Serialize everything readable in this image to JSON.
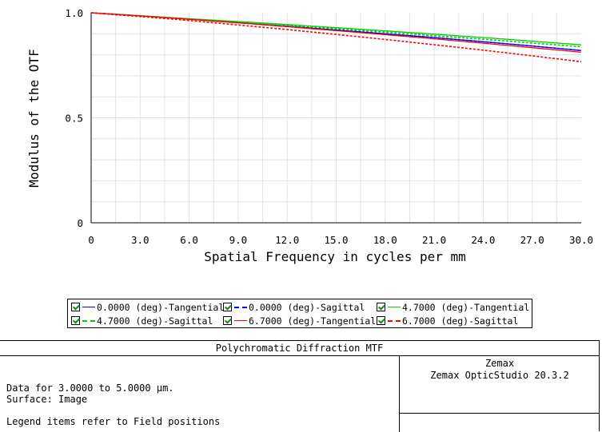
{
  "chart_data": {
    "type": "line",
    "title": "",
    "xlabel": "Spatial Frequency in cycles per mm",
    "ylabel": "Modulus of the OTF",
    "xlim": [
      0,
      30
    ],
    "ylim": [
      0,
      1
    ],
    "x_ticks": [
      "0",
      "3.0",
      "6.0",
      "9.0",
      "12.0",
      "15.0",
      "18.0",
      "21.0",
      "24.0",
      "27.0",
      "30.0"
    ],
    "y_ticks": [
      "0",
      "0.5",
      "1.0"
    ],
    "grid": true,
    "x": [
      0,
      3,
      6,
      9,
      12,
      15,
      18,
      21,
      24,
      27,
      30
    ],
    "series": [
      {
        "name": "0.0000 (deg)-Tangential",
        "color": "#0000ff",
        "style": "solid",
        "values": [
          1.0,
          0.985,
          0.97,
          0.953,
          0.936,
          0.918,
          0.9,
          0.882,
          0.862,
          0.842,
          0.82
        ]
      },
      {
        "name": "0.0000 (deg)-Sagittal",
        "color": "#0000ff",
        "style": "dashed",
        "values": [
          1.0,
          0.985,
          0.97,
          0.953,
          0.936,
          0.918,
          0.9,
          0.882,
          0.862,
          0.842,
          0.82
        ]
      },
      {
        "name": "4.7000 (deg)-Tangential",
        "color": "#00cc00",
        "style": "solid",
        "values": [
          1.0,
          0.986,
          0.972,
          0.958,
          0.944,
          0.929,
          0.914,
          0.898,
          0.882,
          0.865,
          0.847
        ]
      },
      {
        "name": "4.7000 (deg)-Sagittal",
        "color": "#00cc00",
        "style": "dashed",
        "values": [
          1.0,
          0.985,
          0.97,
          0.955,
          0.94,
          0.924,
          0.908,
          0.891,
          0.874,
          0.856,
          0.838
        ]
      },
      {
        "name": "6.7000 (deg)-Tangential",
        "color": "#ff0000",
        "style": "solid",
        "values": [
          1.0,
          0.985,
          0.969,
          0.952,
          0.934,
          0.915,
          0.896,
          0.876,
          0.855,
          0.834,
          0.812
        ]
      },
      {
        "name": "6.7000 (deg)-Sagittal",
        "color": "#ff0000",
        "style": "dashed",
        "values": [
          1.0,
          0.982,
          0.963,
          0.942,
          0.92,
          0.897,
          0.873,
          0.848,
          0.822,
          0.795,
          0.767
        ]
      }
    ],
    "legend_placement": "bottom"
  },
  "legend_note": "Legend items refer to Field positions",
  "info": {
    "title": "Polychromatic Diffraction MTF",
    "data_line": "Data for 3.0000 to 5.0000 µm.",
    "surface_line": "Surface: Image",
    "company": "Zemax",
    "product": "Zemax OpticStudio 20.3.2"
  }
}
